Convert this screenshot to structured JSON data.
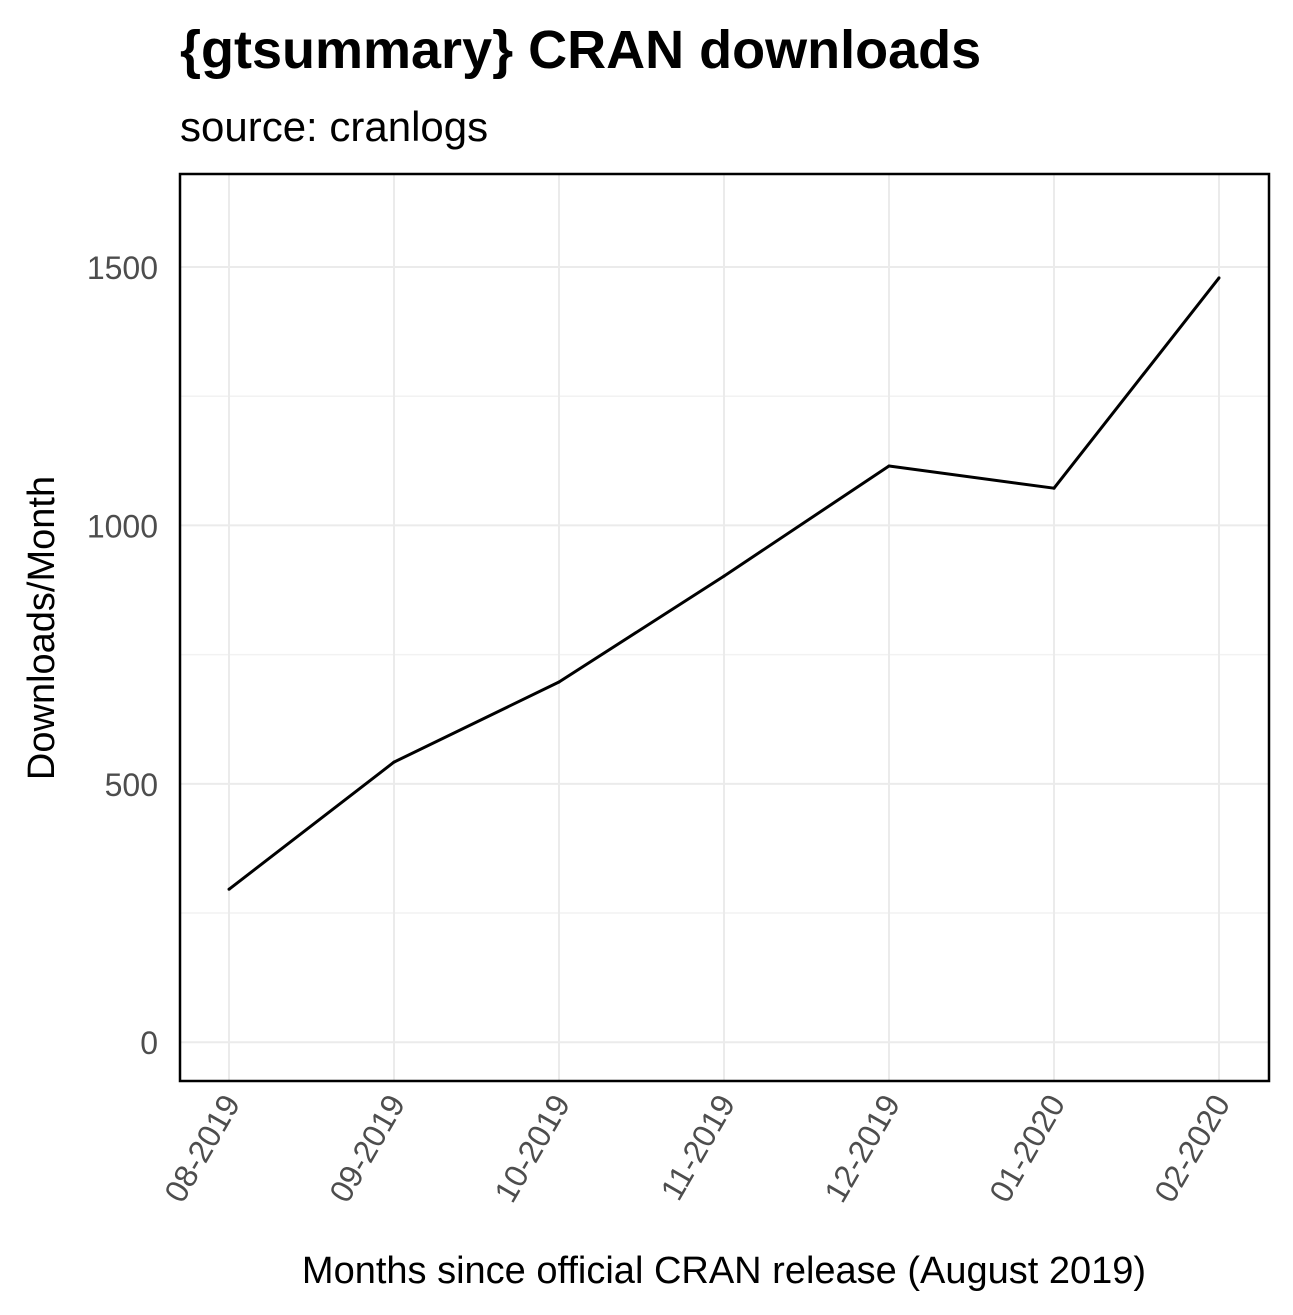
{
  "chart_data": {
    "type": "line",
    "title": "{gtsummary} CRAN downloads",
    "subtitle": "source: cranlogs",
    "xlabel": "Months since official CRAN release (August 2019)",
    "ylabel": "Downloads/Month",
    "categories": [
      "08-2019",
      "09-2019",
      "10-2019",
      "11-2019",
      "12-2019",
      "01-2020",
      "02-2020"
    ],
    "values": [
      296,
      542,
      697,
      902,
      1115,
      1072,
      1479
    ],
    "ylim": [
      -75,
      1680
    ],
    "yticks": [
      0,
      500,
      1000,
      1500
    ],
    "yticks_minor": [
      250,
      750,
      1250
    ],
    "grid": true,
    "line_color": "#000000"
  }
}
